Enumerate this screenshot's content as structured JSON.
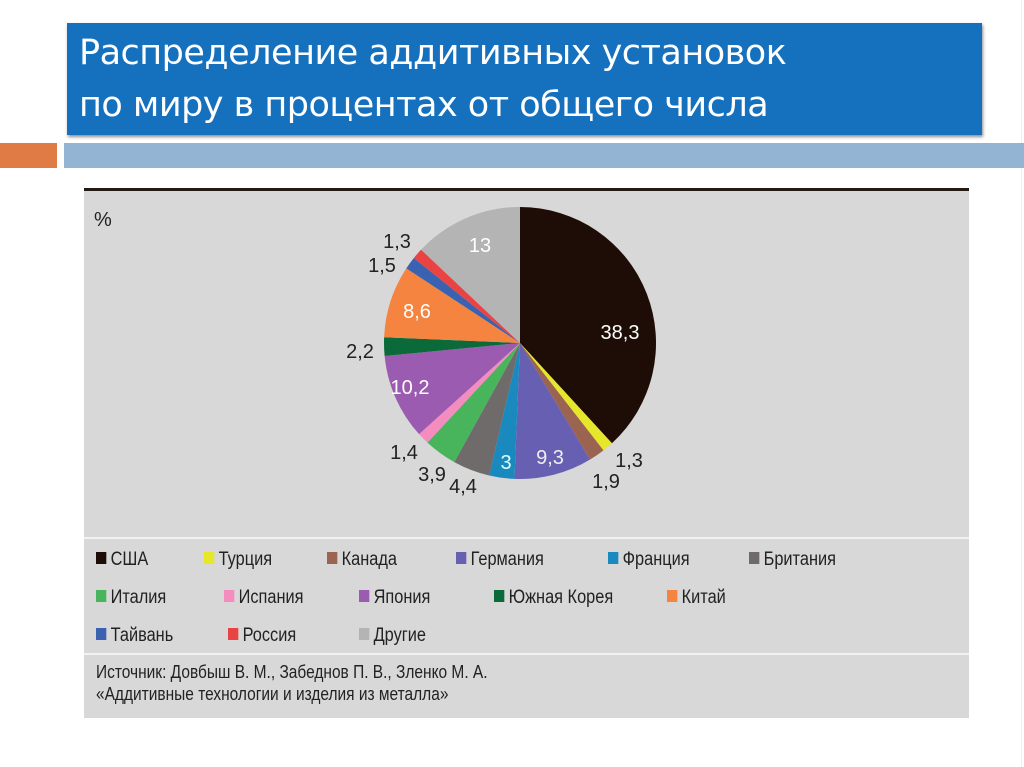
{
  "slide": {
    "title_line1": "Распределение аддитивных установок",
    "title_line2": "по миру в процентах от общего числа",
    "colors": {
      "title_bg": "#1570bd",
      "accent_orange": "#e07b45",
      "accent_blue": "#94b4d3",
      "figure_bg": "#d8d8d8"
    }
  },
  "figure": {
    "unit_label": "%",
    "source_line1": "Источник: Довбыш В. М., Забеднов П. В., Зленко М. А.",
    "source_line2": "«Аддитивные технологии и изделия из металла»"
  },
  "legend": [
    {
      "label": "США",
      "color": "#1e0d06"
    },
    {
      "label": "Турция",
      "color": "#e6e62a"
    },
    {
      "label": "Канада",
      "color": "#9b6450"
    },
    {
      "label": "Германия",
      "color": "#6760b2"
    },
    {
      "label": "Франция",
      "color": "#1a89bd"
    },
    {
      "label": "Британия",
      "color": "#6f6b6b"
    },
    {
      "label": "Италия",
      "color": "#48b45c"
    },
    {
      "label": "Испания",
      "color": "#f48cc0"
    },
    {
      "label": "Япония",
      "color": "#9a5bb0"
    },
    {
      "label": "Южная Корея",
      "color": "#0b6a3a"
    },
    {
      "label": "Китай",
      "color": "#f48440"
    },
    {
      "label": "Тайвань",
      "color": "#3b62b0"
    },
    {
      "label": "Россия",
      "color": "#ea4343"
    },
    {
      "label": "Другие",
      "color": "#b4b4b4"
    }
  ],
  "chart_data": {
    "type": "pie",
    "title": "Распределение аддитивных установок по миру в процентах от общего числа",
    "unit": "%",
    "start_angle": "12 o'clock, clockwise",
    "categories": [
      "США",
      "Турция",
      "Канада",
      "Германия",
      "Франция",
      "Британия",
      "Италия",
      "Испания",
      "Япония",
      "Южная Корея",
      "Китай",
      "Тайвань",
      "Россия",
      "Другие"
    ],
    "values": [
      38.3,
      1.3,
      1.9,
      9.3,
      3,
      4.4,
      3.9,
      1.4,
      10.2,
      2.2,
      8.6,
      1.5,
      1.3,
      13
    ],
    "value_labels": [
      "38,3",
      "1,3",
      "1,9",
      "9,3",
      "3",
      "4,4",
      "3,9",
      "1,4",
      "10,2",
      "2,2",
      "8,6",
      "1,5",
      "1,3",
      "13"
    ],
    "colors": [
      "#1e0d06",
      "#e6e62a",
      "#9b6450",
      "#6760b2",
      "#1a89bd",
      "#6f6b6b",
      "#48b45c",
      "#f48cc0",
      "#9a5bb0",
      "#0b6a3a",
      "#f48440",
      "#3b62b0",
      "#ea4343",
      "#b4b4b4"
    ],
    "legend_position": "bottom",
    "source": "Источник: Довбыш В. М., Забеднов П. В., Зленко М. А. «Аддитивные технологии и изделия из металла»"
  }
}
